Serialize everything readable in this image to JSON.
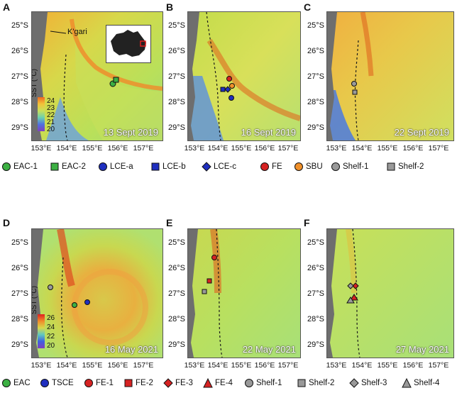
{
  "panels": [
    {
      "letter": "A",
      "date": "13 Sept 2019"
    },
    {
      "letter": "B",
      "date": "16 Sept 2019"
    },
    {
      "letter": "C",
      "date": "22 Sept 2019"
    },
    {
      "letter": "D",
      "date": "16 May 2021"
    },
    {
      "letter": "E",
      "date": "22 May 2021"
    },
    {
      "letter": "F",
      "date": "27 May 2021"
    }
  ],
  "lat_labels": [
    "25°S",
    "26°S",
    "27°S",
    "28°S",
    "29°S"
  ],
  "lon_labels": [
    "153°E",
    "154°E",
    "155°E",
    "156°E",
    "157°E"
  ],
  "place_label": "K'gari",
  "colorbar_top": {
    "title": "SST (°C)",
    "ticks": [
      "24",
      "23",
      "22",
      "21",
      "20"
    ]
  },
  "colorbar_bottom": {
    "title": "SST (°C)",
    "ticks": [
      "26",
      "24",
      "22",
      "20"
    ]
  },
  "legend_top": [
    {
      "label": "EAC-1",
      "shape": "circle",
      "color": "#3cb043"
    },
    {
      "label": "EAC-2",
      "shape": "square",
      "color": "#3cb043"
    },
    {
      "label": "LCE-a",
      "shape": "circle",
      "color": "#1f2fbf"
    },
    {
      "label": "LCE-b",
      "shape": "square",
      "color": "#1f2fbf"
    },
    {
      "label": "LCE-c",
      "shape": "diamond",
      "color": "#1f2fbf"
    },
    {
      "label": "FE",
      "shape": "circle",
      "color": "#d62222"
    },
    {
      "label": "SBU",
      "shape": "circle",
      "color": "#f0902a"
    },
    {
      "label": "Shelf-1",
      "shape": "circle",
      "color": "#999999"
    },
    {
      "label": "Shelf-2",
      "shape": "square",
      "color": "#999999"
    }
  ],
  "legend_bottom": [
    {
      "label": "EAC",
      "shape": "circle",
      "color": "#3cb043"
    },
    {
      "label": "TSCE",
      "shape": "circle",
      "color": "#1f2fbf"
    },
    {
      "label": "FE-1",
      "shape": "circle",
      "color": "#d62222"
    },
    {
      "label": "FE-2",
      "shape": "square",
      "color": "#d62222"
    },
    {
      "label": "FE-3",
      "shape": "diamond",
      "color": "#d62222"
    },
    {
      "label": "FE-4",
      "shape": "triangle",
      "color": "#d62222"
    },
    {
      "label": "Shelf-1",
      "shape": "circle",
      "color": "#999999"
    },
    {
      "label": "Shelf-2",
      "shape": "square",
      "color": "#999999"
    },
    {
      "label": "Shelf-3",
      "shape": "diamond",
      "color": "#999999"
    },
    {
      "label": "Shelf-4",
      "shape": "triangle",
      "color": "#999999"
    }
  ],
  "colors": {
    "land": "#6e6e6e",
    "shelf_break": "#1a1a1a"
  }
}
